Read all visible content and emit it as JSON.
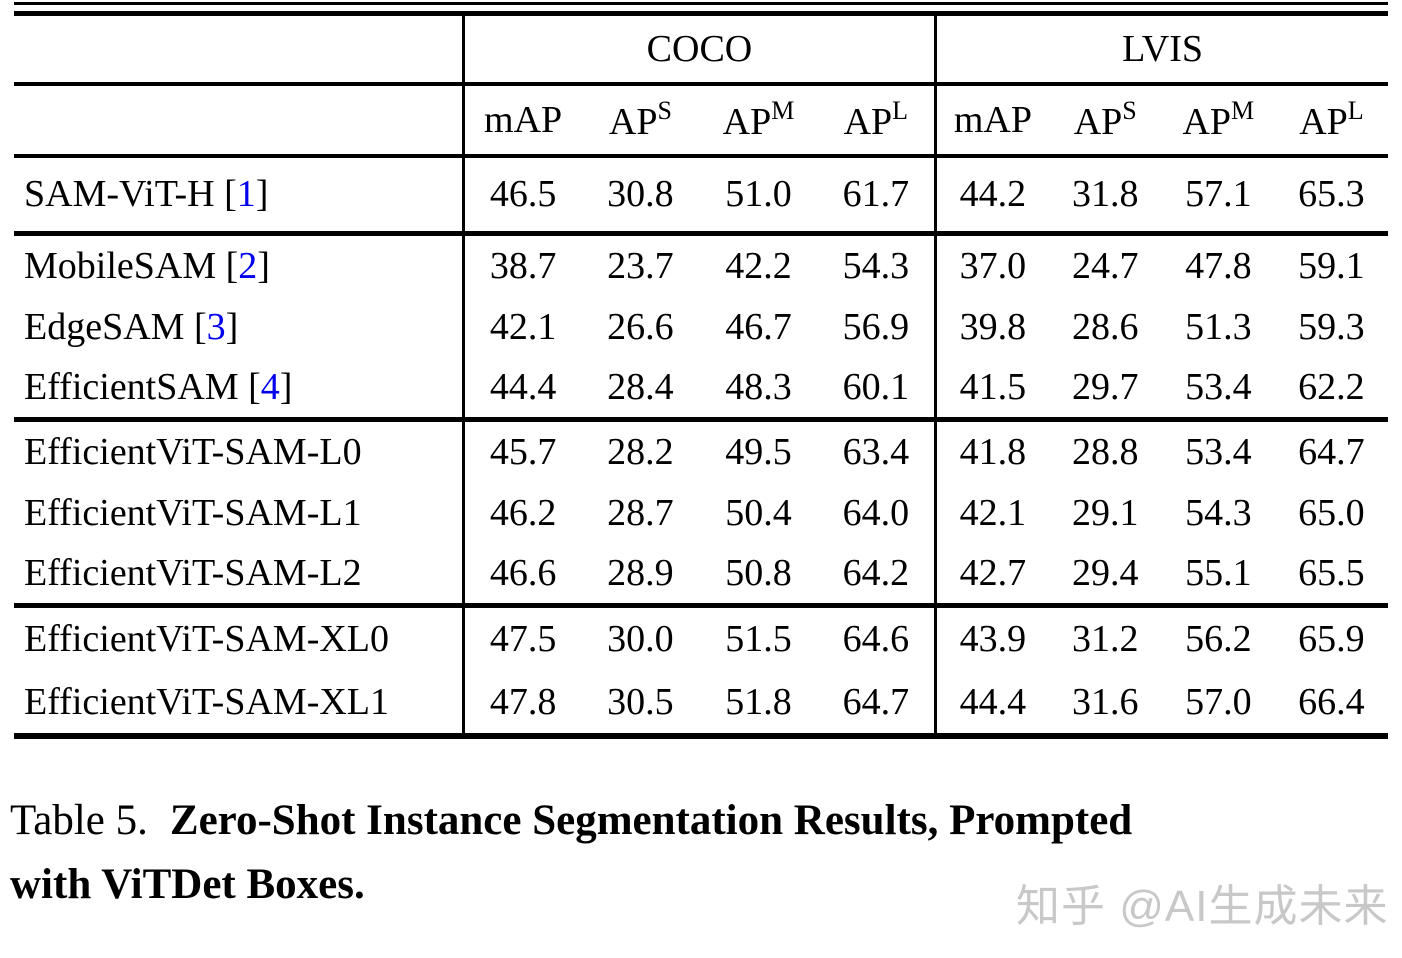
{
  "table": {
    "groups": [
      {
        "label": "COCO"
      },
      {
        "label": "LVIS"
      }
    ],
    "metrics": [
      {
        "base": "mAP",
        "sup": ""
      },
      {
        "base": "AP",
        "sup": "S"
      },
      {
        "base": "AP",
        "sup": "M"
      },
      {
        "base": "AP",
        "sup": "L"
      }
    ],
    "sections": [
      {
        "rows": [
          {
            "model": "SAM-ViT-H",
            "cite": "1",
            "values": [
              "46.5",
              "30.8",
              "51.0",
              "61.7",
              "44.2",
              "31.8",
              "57.1",
              "65.3"
            ]
          }
        ]
      },
      {
        "rows": [
          {
            "model": "MobileSAM",
            "cite": "2",
            "values": [
              "38.7",
              "23.7",
              "42.2",
              "54.3",
              "37.0",
              "24.7",
              "47.8",
              "59.1"
            ]
          },
          {
            "model": "EdgeSAM",
            "cite": "3",
            "values": [
              "42.1",
              "26.6",
              "46.7",
              "56.9",
              "39.8",
              "28.6",
              "51.3",
              "59.3"
            ]
          },
          {
            "model": "EfficientSAM",
            "cite": "4",
            "values": [
              "44.4",
              "28.4",
              "48.3",
              "60.1",
              "41.5",
              "29.7",
              "53.4",
              "62.2"
            ]
          }
        ]
      },
      {
        "rows": [
          {
            "model": "EfficientViT-SAM-L0",
            "cite": "",
            "values": [
              "45.7",
              "28.2",
              "49.5",
              "63.4",
              "41.8",
              "28.8",
              "53.4",
              "64.7"
            ]
          },
          {
            "model": "EfficientViT-SAM-L1",
            "cite": "",
            "values": [
              "46.2",
              "28.7",
              "50.4",
              "64.0",
              "42.1",
              "29.1",
              "54.3",
              "65.0"
            ]
          },
          {
            "model": "EfficientViT-SAM-L2",
            "cite": "",
            "values": [
              "46.6",
              "28.9",
              "50.8",
              "64.2",
              "42.7",
              "29.4",
              "55.1",
              "65.5"
            ]
          }
        ]
      },
      {
        "rows": [
          {
            "model": "EfficientViT-SAM-XL0",
            "cite": "",
            "values": [
              "47.5",
              "30.0",
              "51.5",
              "64.6",
              "43.9",
              "31.2",
              "56.2",
              "65.9"
            ]
          },
          {
            "model": "EfficientViT-SAM-XL1",
            "cite": "",
            "values": [
              "47.8",
              "30.5",
              "51.8",
              "64.7",
              "44.4",
              "31.6",
              "57.0",
              "66.4"
            ]
          }
        ]
      }
    ]
  },
  "caption": {
    "label": "Table 5.",
    "title_line1": "Zero-Shot Instance Segmentation Results, Prompted",
    "title_line2": "with ViTDet Boxes."
  },
  "watermark": "知乎 @AI生成未来",
  "colors": {
    "citation_blue": "#0000EE",
    "rule_black": "#000000",
    "watermark_gray": "#C8C8C8"
  }
}
